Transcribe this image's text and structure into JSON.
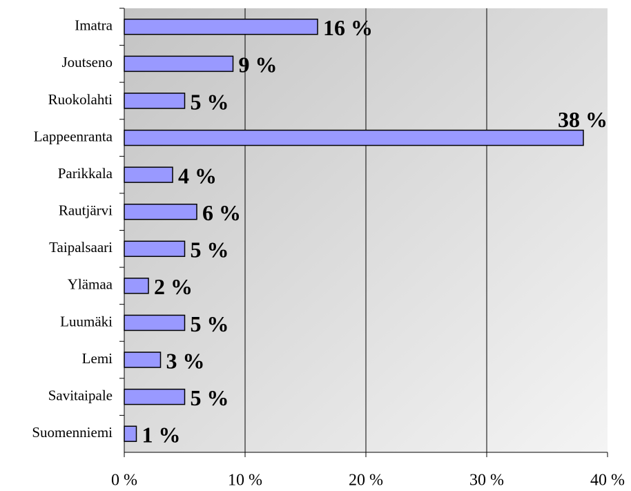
{
  "chart_data": {
    "type": "bar",
    "orientation": "horizontal",
    "categories": [
      "Imatra",
      "Joutseno",
      "Ruokolahti",
      "Lappeenranta",
      "Parikkala",
      "Rautjärvi",
      "Taipalsaari",
      "Ylämaa",
      "Luumäki",
      "Lemi",
      "Savitaipale",
      "Suomenniemi"
    ],
    "values": [
      16,
      9,
      5,
      38,
      4,
      6,
      5,
      2,
      5,
      3,
      5,
      1
    ],
    "value_labels": [
      "16 %",
      "9 %",
      "5 %",
      "38 %",
      "4 %",
      "6 %",
      "5 %",
      "2 %",
      "5 %",
      "3 %",
      "5 %",
      "1 %"
    ],
    "color": "#9999ff",
    "xlim": [
      0,
      40
    ],
    "xticks": [
      {
        "value": 0,
        "label": "0 %"
      },
      {
        "value": 10,
        "label": "10 %"
      },
      {
        "value": 20,
        "label": "20 %"
      },
      {
        "value": 30,
        "label": "30 %"
      },
      {
        "value": 40,
        "label": "40 %"
      }
    ],
    "grid": true
  }
}
